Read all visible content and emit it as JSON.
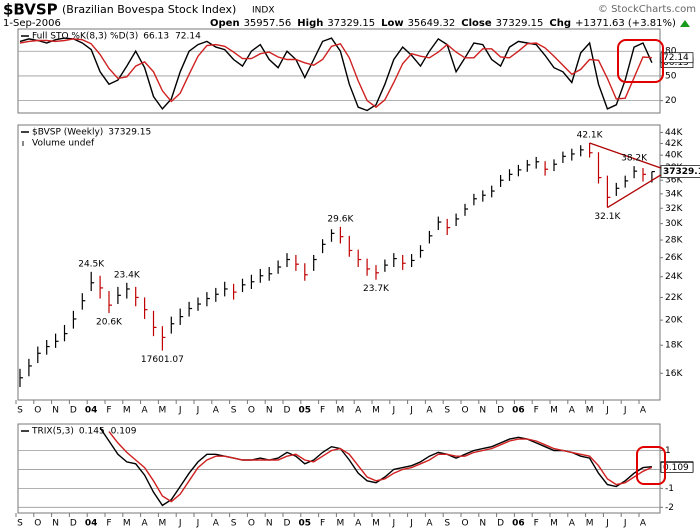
{
  "header": {
    "symbol": "$BVSP",
    "name": "(Brazilian Bovespa Stock Index)",
    "exchange": "INDX",
    "date": "1-Sep-2006",
    "copyright": "© StockCharts.com",
    "quote": [
      {
        "label": "Open",
        "value": 35957.56
      },
      {
        "label": "High",
        "value": 37329.15
      },
      {
        "label": "Low",
        "value": 35649.32
      },
      {
        "label": "Close",
        "value": 37329.15
      },
      {
        "label": "Chg",
        "value": "+1371.63 (+3.81%)"
      }
    ]
  },
  "chart_data": [
    {
      "type": "line",
      "legend": "Full STO %K(8,3) %D(3)",
      "ylim": [
        5,
        107
      ],
      "yticks": [
        20,
        50,
        80
      ],
      "grid": true,
      "series": [
        {
          "color": "#000000",
          "values": [
            92,
            95,
            93,
            90,
            94,
            96,
            95,
            90,
            82,
            55,
            40,
            45,
            62,
            80,
            60,
            25,
            10,
            22,
            55,
            80,
            88,
            92,
            85,
            82,
            70,
            62,
            80,
            88,
            70,
            60,
            80,
            70,
            48,
            70,
            92,
            96,
            80,
            40,
            12,
            8,
            15,
            40,
            70,
            85,
            75,
            62,
            80,
            95,
            88,
            55,
            72,
            90,
            88,
            70,
            62,
            85,
            92,
            90,
            88,
            75,
            60,
            55,
            42,
            78,
            90,
            40,
            10,
            15,
            45,
            85,
            90,
            66.13
          ]
        },
        {
          "color": "#d02020",
          "values": [
            90,
            92,
            93,
            93,
            92,
            93,
            95,
            94,
            89,
            76,
            59,
            47,
            49,
            62,
            67,
            55,
            32,
            19,
            29,
            52,
            74,
            87,
            88,
            86,
            79,
            71,
            71,
            77,
            79,
            73,
            70,
            70,
            66,
            63,
            70,
            86,
            89,
            72,
            44,
            20,
            12,
            21,
            42,
            65,
            77,
            74,
            72,
            79,
            88,
            79,
            72,
            72,
            83,
            83,
            73,
            72,
            80,
            89,
            90,
            84,
            74,
            63,
            52,
            58,
            70,
            69,
            47,
            22,
            23,
            48,
            73,
            72.14
          ]
        }
      ]
    },
    {
      "type": "ohlc",
      "legend": "$BVSP (Weekly)",
      "volume_label": "Volume undef",
      "log_scale": true,
      "grid": false,
      "up_color": "#000000",
      "down_color": "#c00000",
      "trendline_color": "#b00000",
      "ylim": [
        14300,
        45400
      ],
      "yticks": [
        {
          "value": 16000,
          "label": "16K"
        },
        {
          "value": 18000,
          "label": "18K"
        },
        {
          "value": 20000,
          "label": "20K"
        },
        {
          "value": 22000,
          "label": "22K"
        },
        {
          "value": 24000,
          "label": "24K"
        },
        {
          "value": 26000,
          "label": "26K"
        },
        {
          "value": 28000,
          "label": "28K"
        },
        {
          "value": 30000,
          "label": "30K"
        },
        {
          "value": 32000,
          "label": "32K"
        },
        {
          "value": 34000,
          "label": "34K"
        },
        {
          "value": 36000,
          "label": "36K"
        },
        {
          "value": 38000,
          "label": "38K"
        },
        {
          "value": 40000,
          "label": "40K"
        },
        {
          "value": 42000,
          "label": "42K"
        },
        {
          "value": 44000,
          "label": "44K"
        }
      ],
      "categories": [
        "S",
        null,
        "O",
        null,
        "N",
        null,
        "D",
        null,
        "04",
        null,
        "F",
        null,
        "M",
        null,
        "A",
        null,
        "M",
        null,
        "J",
        null,
        "J",
        null,
        "A",
        null,
        "S",
        null,
        "O",
        null,
        "N",
        null,
        "D",
        null,
        "05",
        null,
        "F",
        null,
        "M",
        null,
        "A",
        null,
        "M",
        null,
        "J",
        null,
        "J",
        null,
        "A",
        null,
        "S",
        null,
        "O",
        null,
        "N",
        null,
        "D",
        null,
        "06",
        null,
        "F",
        null,
        "M",
        null,
        "A",
        null,
        "M",
        null,
        "J",
        null,
        "J",
        null,
        "A",
        null
      ],
      "close": [
        15700,
        16500,
        17400,
        17900,
        18300,
        18900,
        20100,
        21700,
        23400,
        22900,
        21300,
        22200,
        22800,
        22000,
        20900,
        19400,
        18600,
        19700,
        20300,
        21000,
        21400,
        21900,
        22300,
        22800,
        22500,
        23200,
        23500,
        24100,
        24300,
        25000,
        25800,
        25300,
        24200,
        25800,
        27500,
        28800,
        28400,
        26800,
        25800,
        24800,
        24400,
        25200,
        25900,
        25400,
        25700,
        26800,
        28500,
        30200,
        29500,
        30600,
        31900,
        33300,
        33800,
        34400,
        36000,
        36900,
        37600,
        38400,
        38900,
        37700,
        38500,
        39800,
        40200,
        40900,
        40400,
        36400,
        33500,
        34800,
        35900,
        37400,
        36900,
        37329.15
      ],
      "high": [
        16300,
        17000,
        17900,
        18400,
        18900,
        19600,
        20800,
        22400,
        24500,
        24100,
        22600,
        23000,
        23400,
        23000,
        22000,
        20800,
        19500,
        20300,
        21000,
        21600,
        22000,
        22500,
        22900,
        23500,
        23300,
        23800,
        24200,
        24800,
        25000,
        25700,
        26500,
        26300,
        25400,
        26300,
        28100,
        29300,
        29600,
        28500,
        26900,
        25900,
        25200,
        25800,
        26500,
        26300,
        26400,
        27400,
        29100,
        30900,
        30600,
        31300,
        32600,
        34000,
        34500,
        35200,
        36800,
        37700,
        38400,
        39200,
        39700,
        39000,
        39300,
        40600,
        41100,
        41700,
        42100,
        40500,
        36700,
        35600,
        36700,
        38200,
        37900,
        37329.15
      ],
      "low": [
        15100,
        15800,
        16700,
        17300,
        17800,
        18300,
        19300,
        20900,
        22600,
        21900,
        20600,
        21400,
        21900,
        21200,
        20100,
        18700,
        17601.07,
        18900,
        19600,
        20300,
        20800,
        21200,
        21600,
        22100,
        21800,
        22500,
        22800,
        23400,
        23600,
        24300,
        25000,
        24600,
        23600,
        24600,
        26500,
        27800,
        27600,
        26100,
        25000,
        24100,
        23700,
        24500,
        25000,
        24700,
        25000,
        26000,
        27600,
        29200,
        28600,
        29700,
        31000,
        32400,
        32900,
        33500,
        35000,
        35900,
        36600,
        37300,
        37800,
        36700,
        37400,
        38700,
        39100,
        39800,
        39600,
        35500,
        32100,
        33700,
        34900,
        36300,
        35800,
        35649.32
      ],
      "annotations": [
        {
          "value": 24500,
          "label": "24.5K"
        },
        {
          "value": 23400,
          "label": "23.4K"
        },
        {
          "value": 20600,
          "label": "20.6K"
        },
        {
          "value": 17601.07,
          "label": "17601.07"
        },
        {
          "value": 29600,
          "label": "29.6K"
        },
        {
          "value": 23700,
          "label": "23.7K"
        },
        {
          "value": 42100,
          "label": "42.1K"
        },
        {
          "value": 38200,
          "label": "38.2K"
        },
        {
          "value": 32100,
          "label": "32.1K"
        }
      ],
      "trendlines": [
        {
          "x": [
            64,
            72
          ],
          "y": [
            42100,
            37900
          ]
        },
        {
          "x": [
            66,
            72
          ],
          "y": [
            32100,
            36800
          ]
        }
      ]
    },
    {
      "type": "line",
      "legend": "TRIX(5,3)",
      "ylim": [
        -2.3,
        2.4
      ],
      "yticks": [
        -2,
        -1,
        0,
        1
      ],
      "grid": true,
      "categories": [
        "S",
        null,
        "O",
        null,
        "N",
        null,
        "D",
        null,
        "04",
        null,
        "F",
        null,
        "M",
        null,
        "A",
        null,
        "M",
        null,
        "J",
        null,
        "J",
        null,
        "A",
        null,
        "S",
        null,
        "O",
        null,
        "N",
        null,
        "D",
        null,
        "05",
        null,
        "F",
        null,
        "M",
        null,
        "A",
        null,
        "M",
        null,
        "J",
        null,
        "J",
        null,
        "A",
        null,
        "S",
        null,
        "O",
        null,
        "N",
        null,
        "D",
        null,
        "06",
        null,
        "F",
        null,
        "M",
        null,
        "A",
        null,
        "M",
        null,
        "J",
        null,
        "J",
        null,
        "A",
        null
      ],
      "series": [
        {
          "color": "#000000",
          "values": [
            null,
            null,
            null,
            null,
            null,
            null,
            null,
            null,
            null,
            2.2,
            1.5,
            0.8,
            0.4,
            0.3,
            -0.3,
            -1.2,
            -1.9,
            -1.6,
            -0.9,
            -0.2,
            0.4,
            0.8,
            0.8,
            0.7,
            0.6,
            0.5,
            0.5,
            0.6,
            0.5,
            0.6,
            0.9,
            0.7,
            0.3,
            0.5,
            0.9,
            1.2,
            1.1,
            0.5,
            -0.2,
            -0.6,
            -0.7,
            -0.4,
            0.0,
            0.1,
            0.2,
            0.4,
            0.7,
            0.9,
            0.8,
            0.6,
            0.8,
            1.0,
            1.1,
            1.2,
            1.4,
            1.6,
            1.7,
            1.6,
            1.4,
            1.2,
            1.0,
            1.0,
            0.9,
            0.7,
            0.6,
            -0.2,
            -0.8,
            -0.9,
            -0.6,
            -0.2,
            0.1,
            0.145
          ]
        },
        {
          "color": "#d02020",
          "values": [
            null,
            null,
            null,
            null,
            null,
            null,
            null,
            null,
            null,
            null,
            2.0,
            1.4,
            0.9,
            0.5,
            0.1,
            -0.6,
            -1.4,
            -1.7,
            -1.3,
            -0.6,
            0.1,
            0.5,
            0.7,
            0.7,
            0.6,
            0.5,
            0.5,
            0.5,
            0.5,
            0.5,
            0.7,
            0.8,
            0.5,
            0.4,
            0.7,
            1.0,
            1.1,
            0.8,
            0.2,
            -0.4,
            -0.6,
            -0.5,
            -0.2,
            0.0,
            0.1,
            0.3,
            0.5,
            0.8,
            0.8,
            0.7,
            0.7,
            0.9,
            1.0,
            1.1,
            1.3,
            1.5,
            1.6,
            1.6,
            1.5,
            1.3,
            1.1,
            1.0,
            0.9,
            0.8,
            0.7,
            0.2,
            -0.5,
            -0.8,
            -0.7,
            -0.4,
            -0.1,
            0.109
          ]
        }
      ]
    }
  ]
}
